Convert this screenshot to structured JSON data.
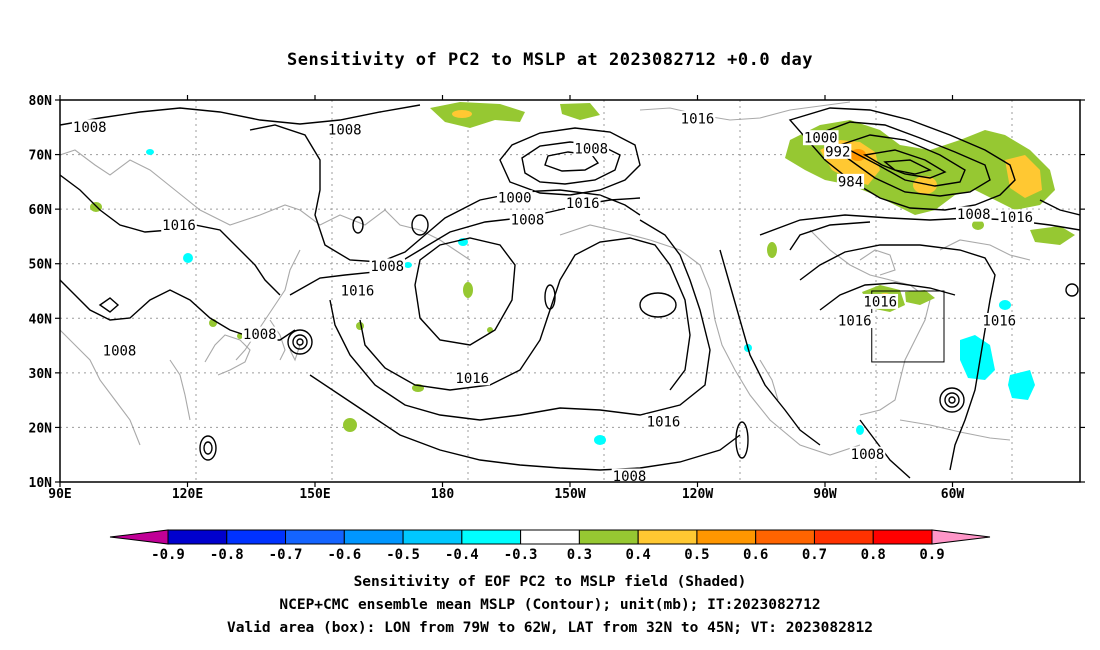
{
  "title": "Sensitivity of PC2 to MSLP at 2023082712 +0.0 day",
  "lat_labels": [
    "80N",
    "70N",
    "60N",
    "50N",
    "40N",
    "30N",
    "20N",
    "10N"
  ],
  "lon_labels": [
    "90E",
    "120E",
    "150E",
    "180",
    "150W",
    "120W",
    "90W",
    "60W"
  ],
  "contour_labels": [
    {
      "text": "1008",
      "lon": 97,
      "lat": 75
    },
    {
      "text": "1008",
      "lon": 157,
      "lat": 74.5
    },
    {
      "text": "1016",
      "lon": 240,
      "lat": 76.5
    },
    {
      "text": "1008",
      "lon": 215,
      "lat": 71
    },
    {
      "text": "1000",
      "lon": 269,
      "lat": 73
    },
    {
      "text": "992",
      "lon": 273,
      "lat": 70.5
    },
    {
      "text": "984",
      "lon": 276,
      "lat": 65
    },
    {
      "text": "1000",
      "lon": 197,
      "lat": 62
    },
    {
      "text": "1008",
      "lon": 200,
      "lat": 58
    },
    {
      "text": "1016",
      "lon": 213,
      "lat": 61
    },
    {
      "text": "1016",
      "lon": 118,
      "lat": 57
    },
    {
      "text": "1008",
      "lon": 167,
      "lat": 49.5
    },
    {
      "text": "1016",
      "lon": 160,
      "lat": 45
    },
    {
      "text": "1008",
      "lon": 104,
      "lat": 34
    },
    {
      "text": "1008",
      "lon": 137,
      "lat": 37
    },
    {
      "text": "1016",
      "lon": 187,
      "lat": 29
    },
    {
      "text": "1016",
      "lon": 232,
      "lat": 21
    },
    {
      "text": "1008",
      "lon": 224,
      "lat": 11
    },
    {
      "text": "1016",
      "lon": 283,
      "lat": 43
    },
    {
      "text": "1016",
      "lon": 277,
      "lat": 39.5
    },
    {
      "text": "1016",
      "lon": 311,
      "lat": 39.5
    },
    {
      "text": "1008",
      "lon": 305,
      "lat": 59
    },
    {
      "text": "1016",
      "lon": 315,
      "lat": 58.5
    },
    {
      "text": "1008",
      "lon": 280,
      "lat": 15
    }
  ],
  "colorbar": {
    "labels": [
      "-0.9",
      "-0.8",
      "-0.7",
      "-0.6",
      "-0.5",
      "-0.4",
      "-0.3",
      "0.3",
      "0.4",
      "0.5",
      "0.6",
      "0.7",
      "0.8",
      "0.9"
    ],
    "colors": [
      "#0000a0",
      "#0000cd",
      "#0032ff",
      "#1464ff",
      "#0096ff",
      "#00c8ff",
      "#00ffff",
      "#ffffff",
      "#96c832",
      "#ffc832",
      "#ff9600",
      "#ff6400",
      "#ff3200",
      "#ff0000"
    ],
    "low_extend_color": "#c00096",
    "high_extend_color": "#ff96c8"
  },
  "valid_box": {
    "lon_min": -79,
    "lon_max": -62,
    "lat_min": 32,
    "lat_max": 45
  },
  "captions": [
    "Sensitivity of EOF PC2 to MSLP field (Shaded)",
    "NCEP+CMC ensemble mean MSLP (Contour); unit(mb); IT:2023082712",
    "Valid area (box): LON from 79W to 62W, LAT from 32N to 45N; VT: 2023082812"
  ]
}
